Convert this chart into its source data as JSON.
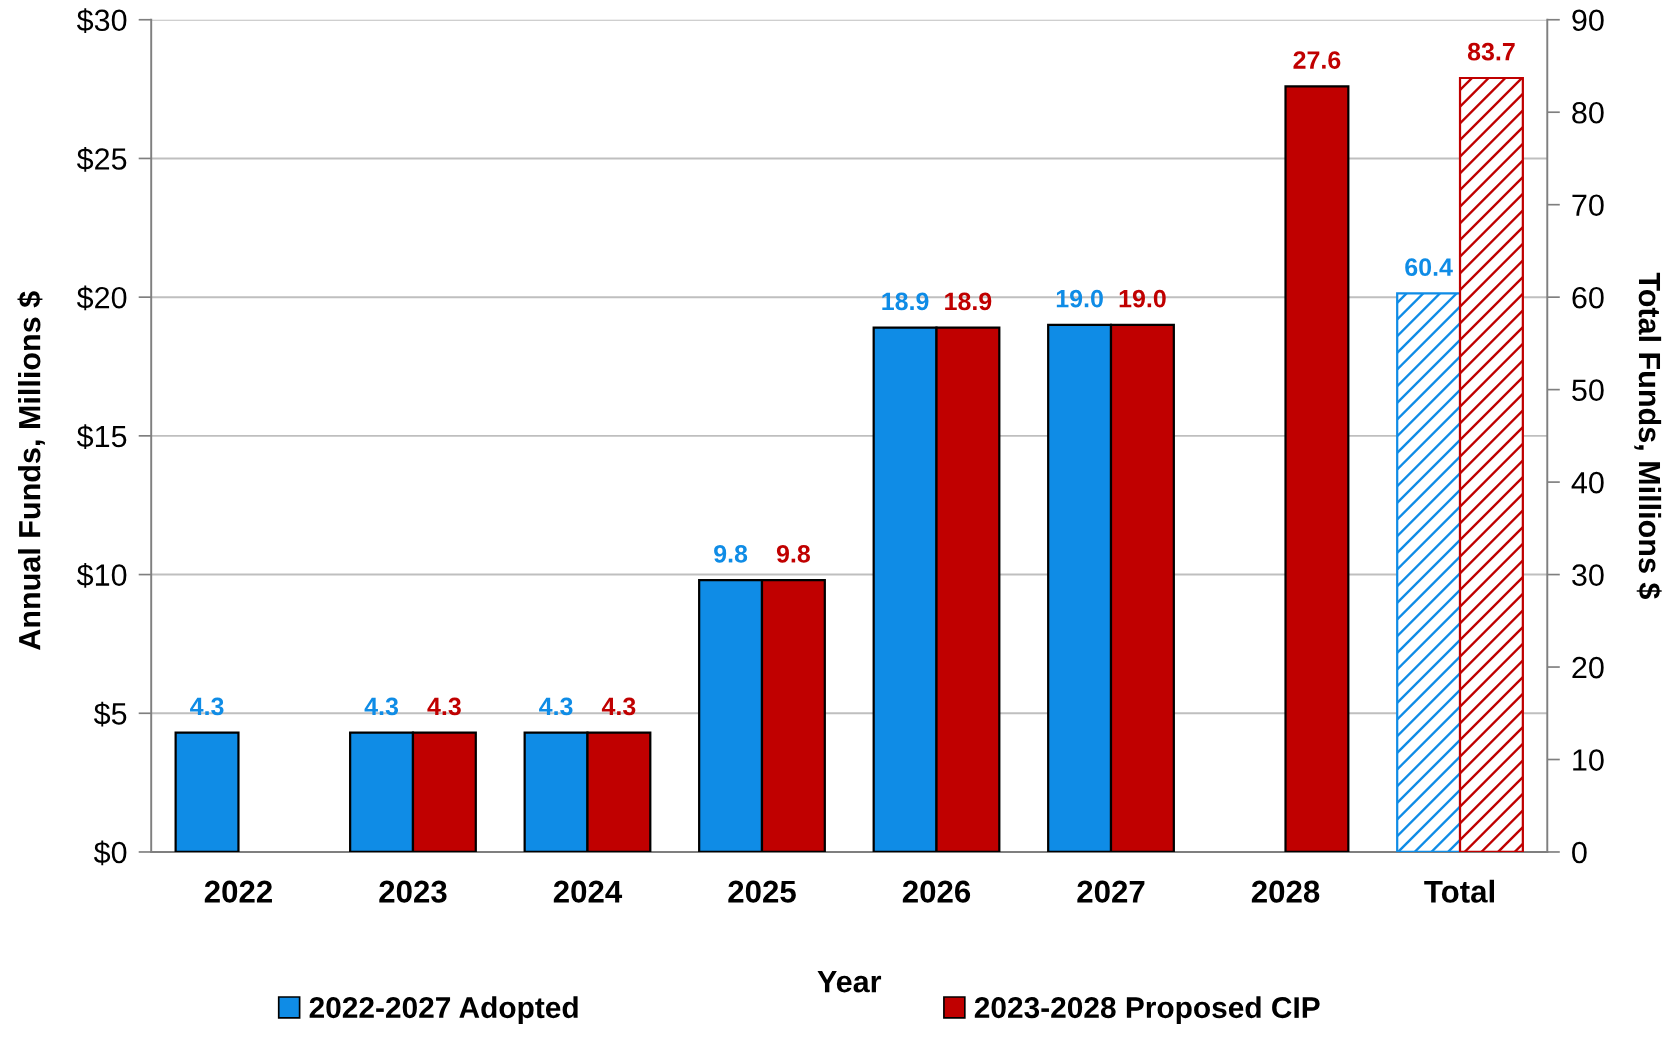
{
  "chart_data": {
    "type": "bar",
    "categories": [
      "2022",
      "2023",
      "2024",
      "2025",
      "2026",
      "2027",
      "2028",
      "Total"
    ],
    "xlabel": "Year",
    "ylabel": "Annual Funds, Millions $",
    "y2label": "Total Funds, Millions $",
    "series": [
      {
        "name": "2022-2027 Adopted",
        "color": "#0f8ce6",
        "values": [
          4.3,
          4.3,
          4.3,
          9.8,
          18.9,
          19.0,
          null,
          null
        ],
        "value_labels": [
          "4.3",
          "4.3",
          "4.3",
          "9.8",
          "18.9",
          "19.0",
          null,
          null
        ]
      },
      {
        "name": "2023-2028 Proposed CIP",
        "color": "#c00000",
        "values": [
          null,
          4.3,
          4.3,
          9.8,
          18.9,
          19.0,
          27.6,
          null
        ],
        "value_labels": [
          null,
          "4.3",
          "4.3",
          "9.8",
          "18.9",
          "19.0",
          "27.6",
          null
        ]
      },
      {
        "axis": "y2",
        "color": "#0f8ce6",
        "values": [
          null,
          null,
          null,
          null,
          null,
          null,
          null,
          60.4
        ],
        "value_labels": [
          null,
          null,
          null,
          null,
          null,
          null,
          null,
          "60.4"
        ]
      },
      {
        "axis": "y2",
        "color": "#c00000",
        "values": [
          null,
          null,
          null,
          null,
          null,
          null,
          null,
          83.7
        ],
        "value_labels": [
          null,
          null,
          null,
          null,
          null,
          null,
          null,
          "83.7"
        ]
      }
    ],
    "ylim": [
      0,
      30
    ],
    "yticks": [
      {
        "value": 0,
        "label": "$0"
      },
      {
        "value": 5,
        "label": "$5"
      },
      {
        "value": 10,
        "label": "$10"
      },
      {
        "value": 15,
        "label": "$15"
      },
      {
        "value": 20,
        "label": "$20"
      },
      {
        "value": 25,
        "label": "$25"
      },
      {
        "value": 30,
        "label": "$30"
      }
    ],
    "y2lim": [
      0,
      90
    ],
    "y2ticks": [
      0,
      10,
      20,
      30,
      40,
      50,
      60,
      70,
      80,
      90
    ],
    "grid": "y",
    "legend": "bottom"
  }
}
